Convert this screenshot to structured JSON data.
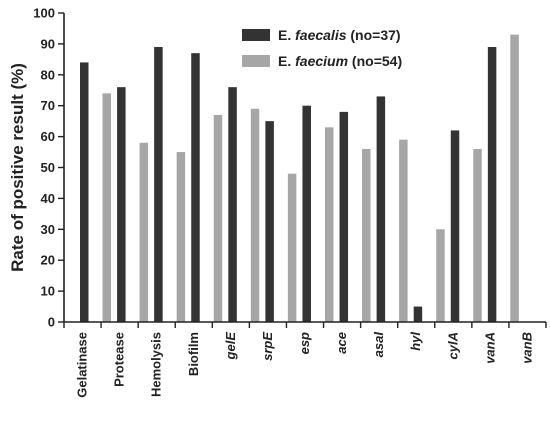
{
  "chart_data": {
    "type": "bar",
    "ylabel": "Rate of positive result (%)",
    "xlabel": "",
    "ylim": [
      0,
      100
    ],
    "yticks": [
      0,
      10,
      20,
      30,
      40,
      50,
      60,
      70,
      80,
      90,
      100
    ],
    "categories": [
      "Gelatinase",
      "Protease",
      "Hemolysis",
      "Biofilm",
      "gelE",
      "srpE",
      "esp",
      "ace",
      "asaI",
      "hyl",
      "cylA",
      "vanA",
      "vanB"
    ],
    "category_italic": [
      false,
      false,
      false,
      false,
      true,
      true,
      true,
      true,
      true,
      true,
      true,
      true,
      true
    ],
    "series": [
      {
        "name": "E. faecalis (no=37)",
        "legend_parts": [
          "E. ",
          "faecalis",
          " (no=37)"
        ],
        "color": "#333333",
        "values": [
          84,
          76,
          89,
          87,
          76,
          65,
          70,
          68,
          73,
          5,
          62,
          89,
          0
        ]
      },
      {
        "name": "E. faecium (no=54)",
        "legend_parts": [
          "E. ",
          "faecium",
          " (no=54)"
        ],
        "color": "#a6a6a6",
        "values": [
          74,
          58,
          55,
          67,
          69,
          48,
          63,
          56,
          59,
          30,
          56,
          93,
          0
        ]
      }
    ],
    "legend_position": "top-right",
    "grid": false
  }
}
